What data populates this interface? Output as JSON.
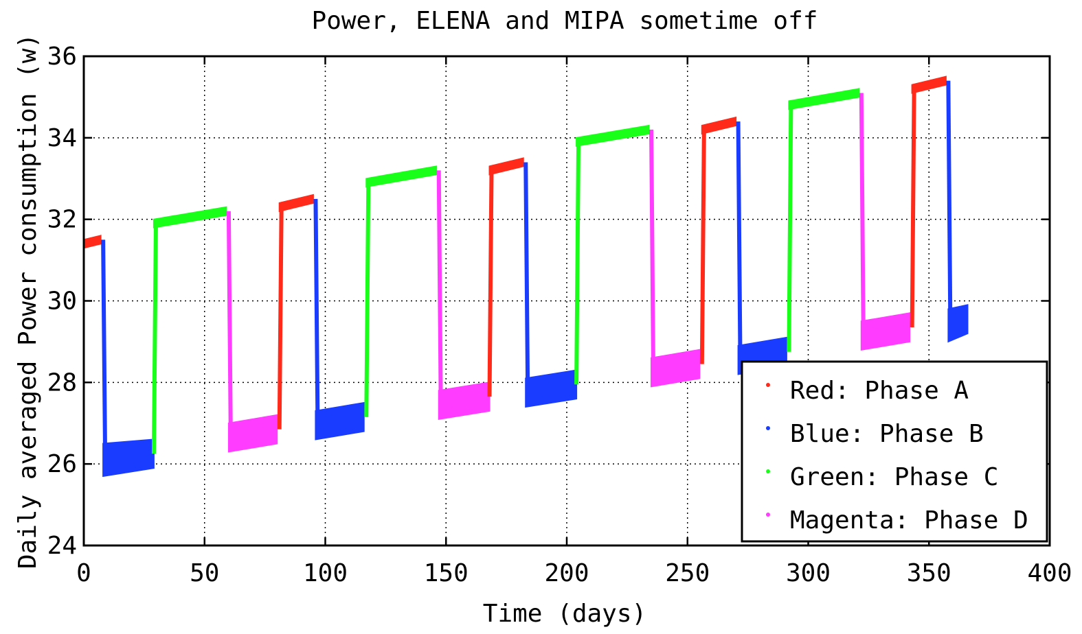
{
  "chart_data": {
    "type": "scatter",
    "title": "Power, ELENA and MIPA sometime off",
    "xlabel": "Time (days)",
    "ylabel": "Daily averaged Power consumption (w)",
    "xlim": [
      0,
      400
    ],
    "ylim": [
      24,
      36
    ],
    "xticks": [
      "0",
      "50",
      "100",
      "150",
      "200",
      "250",
      "300",
      "350",
      "400"
    ],
    "yticks": [
      "24",
      "26",
      "28",
      "30",
      "32",
      "34",
      "36"
    ],
    "grid": true,
    "legend_position": "bottom-right",
    "series": [
      {
        "name": "Red: Phase A",
        "color": "#ff2a1a",
        "segments": [
          {
            "x_start": 0,
            "x_end": 7,
            "y_low_start": 31.3,
            "y_high_start": 31.5,
            "y_low_end": 31.4,
            "y_high_end": 31.6
          },
          {
            "x_start": 81,
            "x_end": 95,
            "y_low_start": 32.2,
            "y_high_start": 32.4,
            "y_low_end": 32.4,
            "y_high_end": 32.6
          },
          {
            "x_start": 168,
            "x_end": 182,
            "y_low_start": 33.1,
            "y_high_start": 33.3,
            "y_low_end": 33.3,
            "y_high_end": 33.5
          },
          {
            "x_start": 256,
            "x_end": 270,
            "y_low_start": 34.1,
            "y_high_start": 34.3,
            "y_low_end": 34.3,
            "y_high_end": 34.5
          },
          {
            "x_start": 343,
            "x_end": 357,
            "y_low_start": 35.1,
            "y_high_start": 35.3,
            "y_low_end": 35.3,
            "y_high_end": 35.5
          }
        ]
      },
      {
        "name": "Blue: Phase B",
        "color": "#1a3cff",
        "segments": [
          {
            "x_start": 8,
            "x_end": 29,
            "y_low_start": 25.7,
            "y_high_start": 26.5,
            "y_low_end": 25.9,
            "y_high_end": 26.6
          },
          {
            "x_start": 96,
            "x_end": 116,
            "y_low_start": 26.6,
            "y_high_start": 27.3,
            "y_low_end": 26.8,
            "y_high_end": 27.5
          },
          {
            "x_start": 183,
            "x_end": 204,
            "y_low_start": 27.4,
            "y_high_start": 28.1,
            "y_low_end": 27.6,
            "y_high_end": 28.3
          },
          {
            "x_start": 271,
            "x_end": 291,
            "y_low_start": 28.2,
            "y_high_start": 28.9,
            "y_low_end": 28.4,
            "y_high_end": 29.1
          },
          {
            "x_start": 358,
            "x_end": 366,
            "y_low_start": 29.0,
            "y_high_start": 29.8,
            "y_low_end": 29.2,
            "y_high_end": 29.9
          }
        ]
      },
      {
        "name": "Green: Phase C",
        "color": "#1aff1a",
        "segments": [
          {
            "x_start": 29,
            "x_end": 59,
            "y_low_start": 31.8,
            "y_high_start": 32.0,
            "y_low_end": 32.1,
            "y_high_end": 32.3
          },
          {
            "x_start": 117,
            "x_end": 146,
            "y_low_start": 32.8,
            "y_high_start": 33.0,
            "y_low_end": 33.1,
            "y_high_end": 33.3
          },
          {
            "x_start": 204,
            "x_end": 234,
            "y_low_start": 33.8,
            "y_high_start": 34.0,
            "y_low_end": 34.1,
            "y_high_end": 34.3
          },
          {
            "x_start": 292,
            "x_end": 321,
            "y_low_start": 34.7,
            "y_high_start": 34.9,
            "y_low_end": 35.0,
            "y_high_end": 35.2
          }
        ]
      },
      {
        "name": "Magenta: Phase D",
        "color": "#ff3cff",
        "segments": [
          {
            "x_start": 60,
            "x_end": 80,
            "y_low_start": 26.3,
            "y_high_start": 27.0,
            "y_low_end": 26.5,
            "y_high_end": 27.2
          },
          {
            "x_start": 147,
            "x_end": 168,
            "y_low_start": 27.1,
            "y_high_start": 27.8,
            "y_low_end": 27.3,
            "y_high_end": 28.0
          },
          {
            "x_start": 235,
            "x_end": 255,
            "y_low_start": 27.9,
            "y_high_start": 28.6,
            "y_low_end": 28.1,
            "y_high_end": 28.8
          },
          {
            "x_start": 322,
            "x_end": 342,
            "y_low_start": 28.8,
            "y_high_start": 29.5,
            "y_low_end": 29.0,
            "y_high_end": 29.7
          }
        ]
      }
    ]
  }
}
